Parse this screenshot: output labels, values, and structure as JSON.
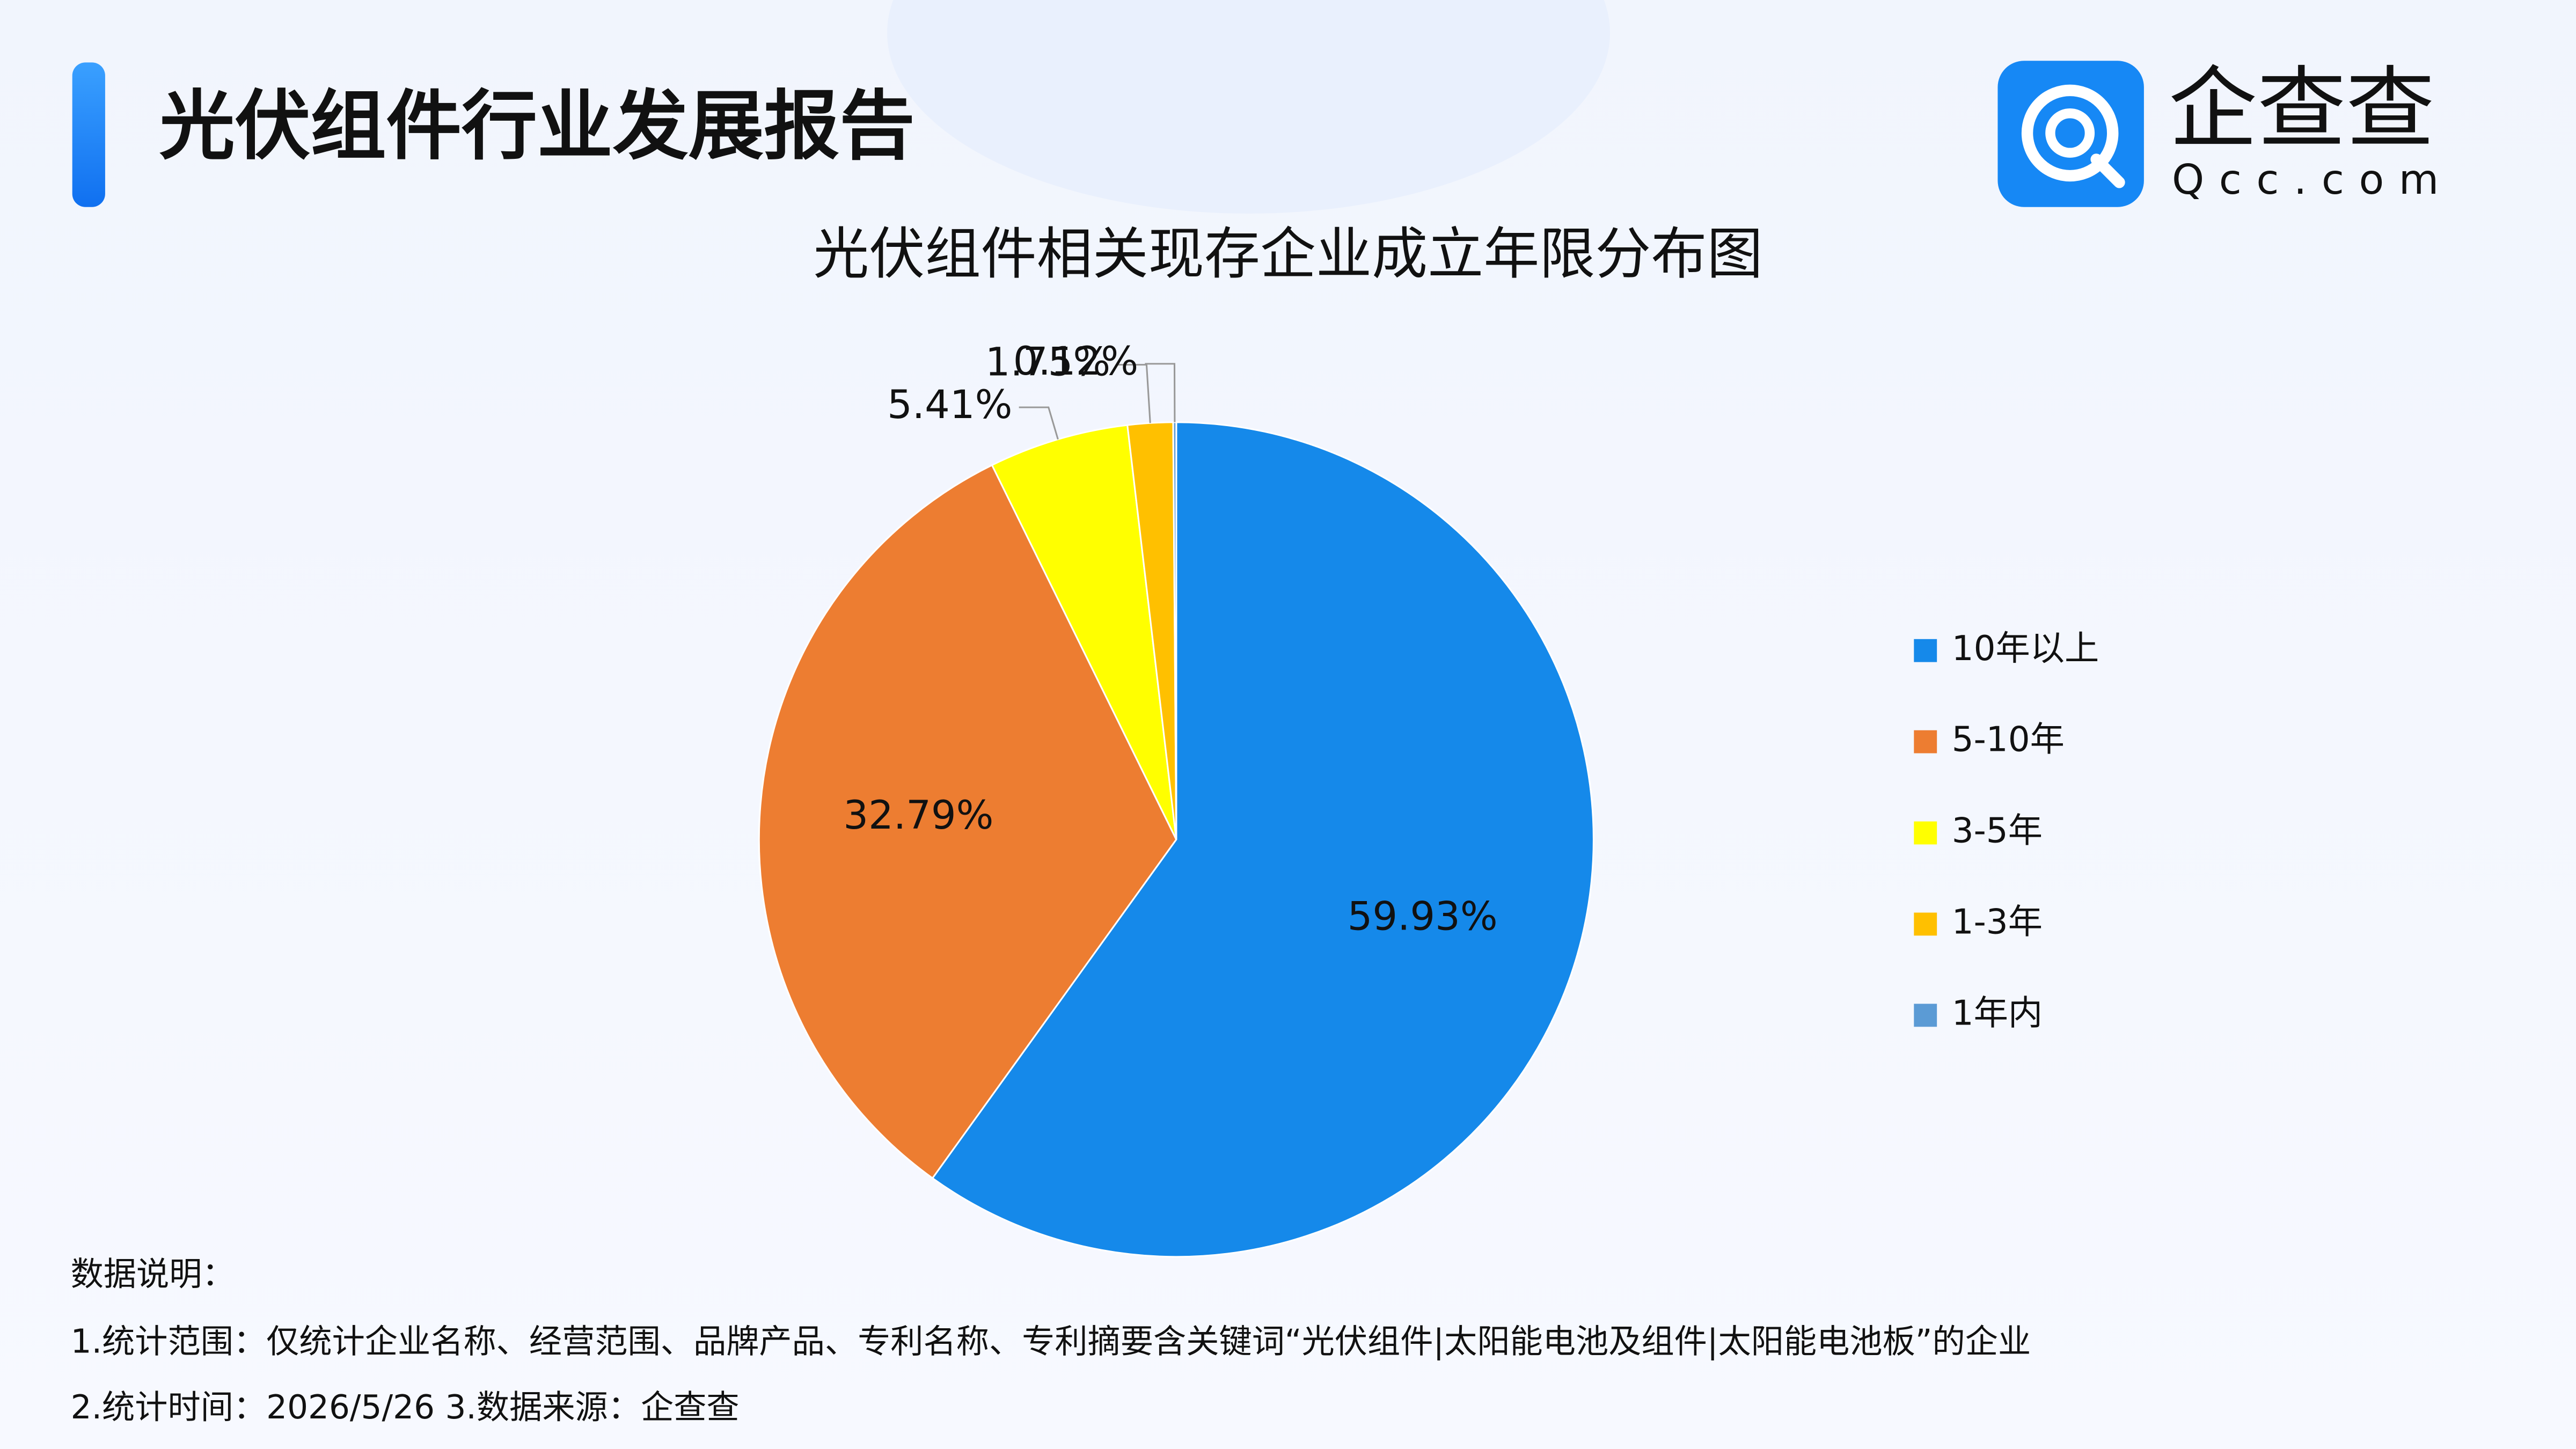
{
  "header": {
    "title": "光伏组件行业发展报告",
    "logo_name": "企查查",
    "logo_site": "Qcc.com"
  },
  "chart_data": {
    "type": "pie",
    "title": "光伏组件相关现存企业成立年限分布图",
    "categories": [
      "10年以上",
      "5-10年",
      "3-5年",
      "1-3年",
      "1年内"
    ],
    "values": [
      59.93,
      32.79,
      5.41,
      1.75,
      0.12
    ],
    "value_labels": [
      "59.93%",
      "32.79%",
      "5.41%",
      "1.75%",
      "0.12%"
    ],
    "colors": [
      "#1589ea",
      "#ed7d31",
      "#ffff00",
      "#ffc000",
      "#5b9bd5"
    ],
    "legend": "right"
  },
  "notes": [
    "数据说明：",
    "1.统计范围：仅统计企业名称、经营范围、品牌产品、专利名称、专利摘要含关键词“光伏组件|太阳能电池及组件|太阳能电池板”的企业",
    "2.统计时间：2026/5/26  3.数据来源：企查查"
  ]
}
